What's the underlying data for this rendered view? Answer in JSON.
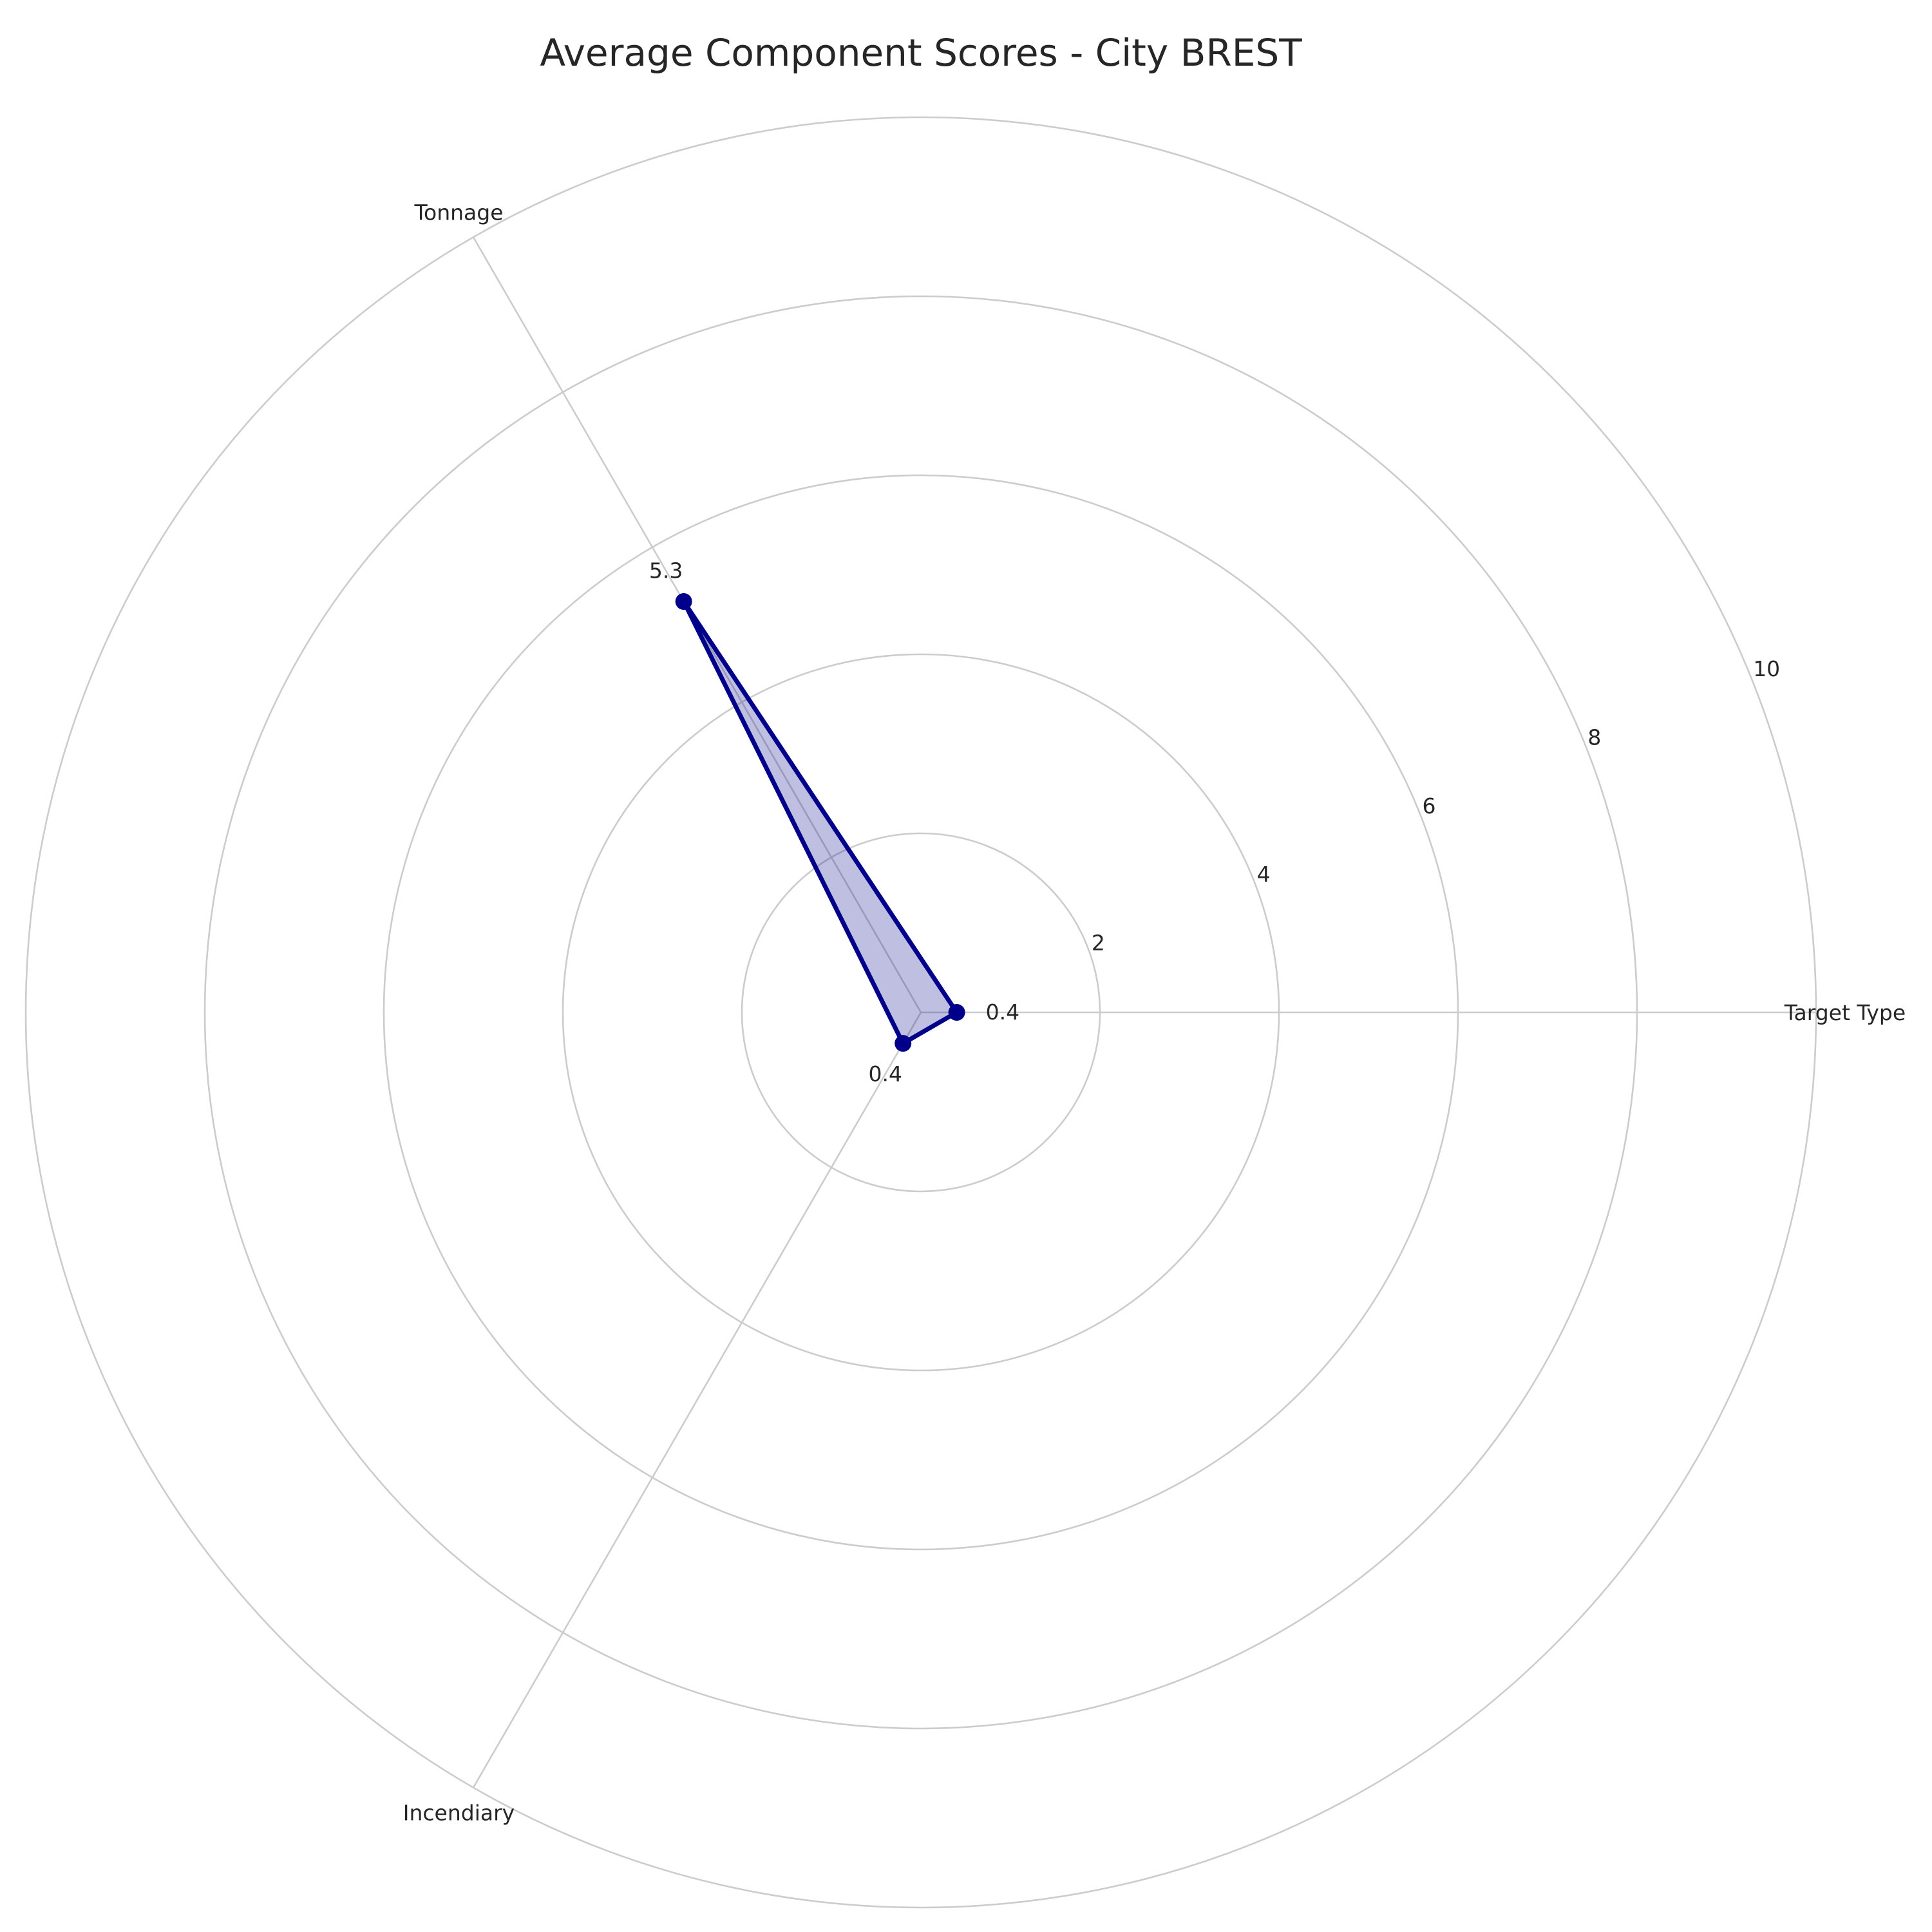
{
  "chart_data": {
    "type": "radar",
    "title": "Average Component Scores - City BREST",
    "categories": [
      "Target Type",
      "Tonnage",
      "Incendiary"
    ],
    "values": [
      0.4,
      5.3,
      0.4
    ],
    "value_labels": [
      "0.4",
      "5.3",
      "0.4"
    ],
    "rlim": [
      0,
      10
    ],
    "r_ticks": [
      2,
      4,
      6,
      8,
      10
    ],
    "r_tick_labels": [
      "2",
      "4",
      "6",
      "8",
      "10"
    ],
    "grid": true,
    "colors": {
      "series": "#00008b",
      "grid": "#cccccc",
      "text": "#262626"
    }
  }
}
